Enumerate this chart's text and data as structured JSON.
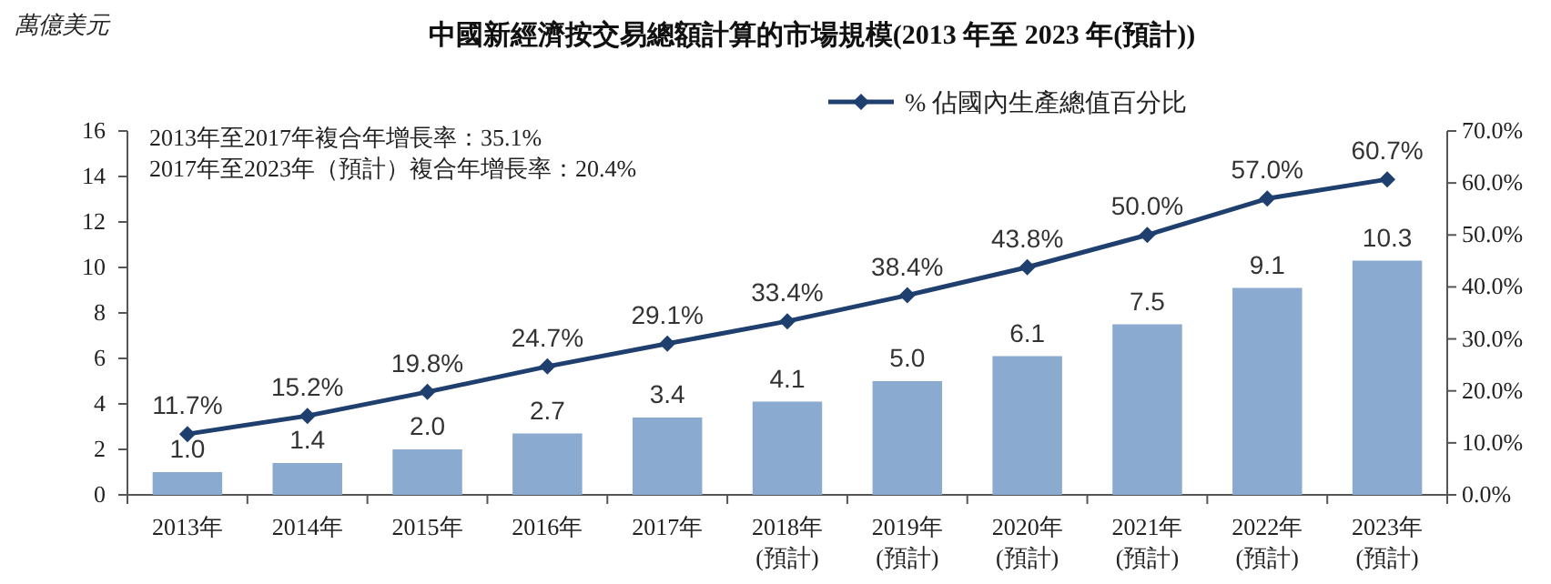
{
  "chart_data": {
    "type": "bar",
    "title": "中國新經濟按交易總額計算的市場規模(2013 年至 2023 年(預計))",
    "ylabel": "萬億美元",
    "categories": [
      "2013年",
      "2014年",
      "2015年",
      "2016年",
      "2017年",
      "2018年\n(預計)",
      "2019年\n(預計)",
      "2020年\n(預計)",
      "2021年\n(預計)",
      "2022年\n(預計)",
      "2023年\n(預計)"
    ],
    "series": [
      {
        "color": "#8aaad0",
        "values": [
          1.0,
          1.4,
          2.0,
          2.7,
          3.4,
          4.1,
          5.0,
          6.1,
          7.5,
          9.1,
          10.3
        ],
        "value_labels": [
          "1.0",
          "1.4",
          "2.0",
          "2.7",
          "3.4",
          "4.1",
          "5.0",
          "6.1",
          "7.5",
          "9.1",
          "10.3"
        ]
      },
      {
        "type": "line",
        "name": "% 佔國內生產總值百分比",
        "color": "#1f3f6e",
        "axis": "y2",
        "marker": "diamond",
        "values": [
          11.7,
          15.2,
          19.8,
          24.7,
          29.1,
          33.4,
          38.4,
          43.8,
          50.0,
          57.0,
          60.7
        ],
        "value_labels": [
          "11.7%",
          "15.2%",
          "19.8%",
          "24.7%",
          "29.1%",
          "33.4%",
          "38.4%",
          "43.8%",
          "50.0%",
          "57.0%",
          "60.7%"
        ]
      }
    ],
    "ylim": [
      0,
      16
    ],
    "yticks": [
      0,
      2,
      4,
      6,
      8,
      10,
      12,
      14,
      16
    ],
    "y2lim": [
      0,
      70
    ],
    "y2ticks": [
      {
        "value": 0,
        "label": "0.0%"
      },
      {
        "value": 10,
        "label": "10.0%"
      },
      {
        "value": 20,
        "label": "20.0%"
      },
      {
        "value": 30,
        "label": "30.0%"
      },
      {
        "value": 40,
        "label": "40.0%"
      },
      {
        "value": 50,
        "label": "50.0%"
      },
      {
        "value": 60,
        "label": "60.0%"
      },
      {
        "value": 70,
        "label": "70.0%"
      }
    ],
    "annotations": [
      "2013年至2017年複合年增長率：35.1%",
      "2017年至2023年（預計）複合年增長率：20.4%"
    ],
    "legend": "top right",
    "grid": false
  }
}
